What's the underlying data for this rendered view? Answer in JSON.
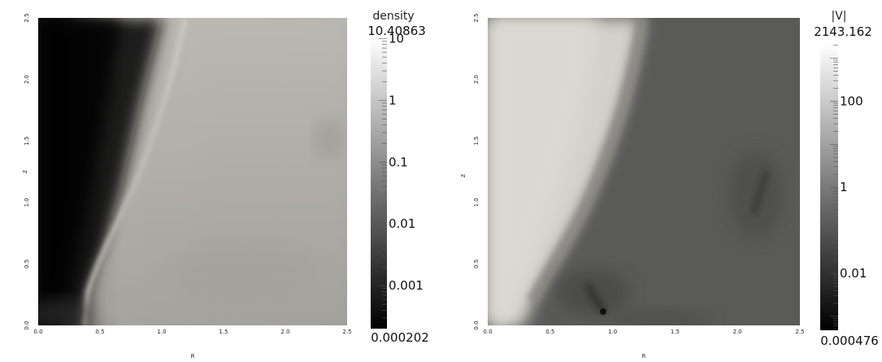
{
  "chart_data": [
    {
      "type": "heatmap",
      "title": "",
      "xlabel": "R",
      "ylabel": "z",
      "xlim": [
        0.0,
        2.5
      ],
      "ylim": [
        0.0,
        2.5
      ],
      "xticks": [
        "0.0",
        "0.5",
        "1.0",
        "1.5",
        "2.0",
        "2.5"
      ],
      "yticks": [
        "0.0",
        "0.5",
        "1.0",
        "1.5",
        "2.0",
        "2.5"
      ],
      "colorbar": {
        "label": "density",
        "max_label": "10.40863",
        "min_label": "0.000202",
        "max": 10.40863,
        "min": 0.000202,
        "scale": "log",
        "ticks": [
          "10",
          "1",
          "0.1",
          "0.01",
          "0.001"
        ],
        "tick_values": [
          10,
          1,
          0.1,
          0.01,
          0.001
        ],
        "colormap": [
          "#000000",
          "#ffffff"
        ]
      },
      "colors": {
        "dense_core": "#050505",
        "ambient": "#b8b6b0",
        "shock_ridge": "#cfccc6"
      }
    },
    {
      "type": "heatmap",
      "title": "",
      "xlabel": "R",
      "ylabel": "z",
      "xlim": [
        0.0,
        2.5
      ],
      "ylim": [
        0.0,
        2.5
      ],
      "xticks": [
        "0.0",
        "0.5",
        "1.0",
        "1.5",
        "2.0",
        "2.5"
      ],
      "yticks": [
        "0.0",
        "0.5",
        "1.0",
        "1.5",
        "2.0",
        "2.5"
      ],
      "colorbar": {
        "label": "|V|",
        "max_label": "2143.162",
        "min_label": "0.000476",
        "max": 2143.162,
        "min": 0.000476,
        "scale": "log",
        "ticks": [
          "100",
          "1",
          "0.01"
        ],
        "tick_values": [
          100,
          1,
          0.01
        ],
        "colormap": [
          "#000000",
          "#ffffff"
        ]
      },
      "colors": {
        "fast_jet": "#d6d5cd",
        "slow_region": "#5a5a58",
        "stagnation": "#1a1a1a"
      }
    }
  ]
}
